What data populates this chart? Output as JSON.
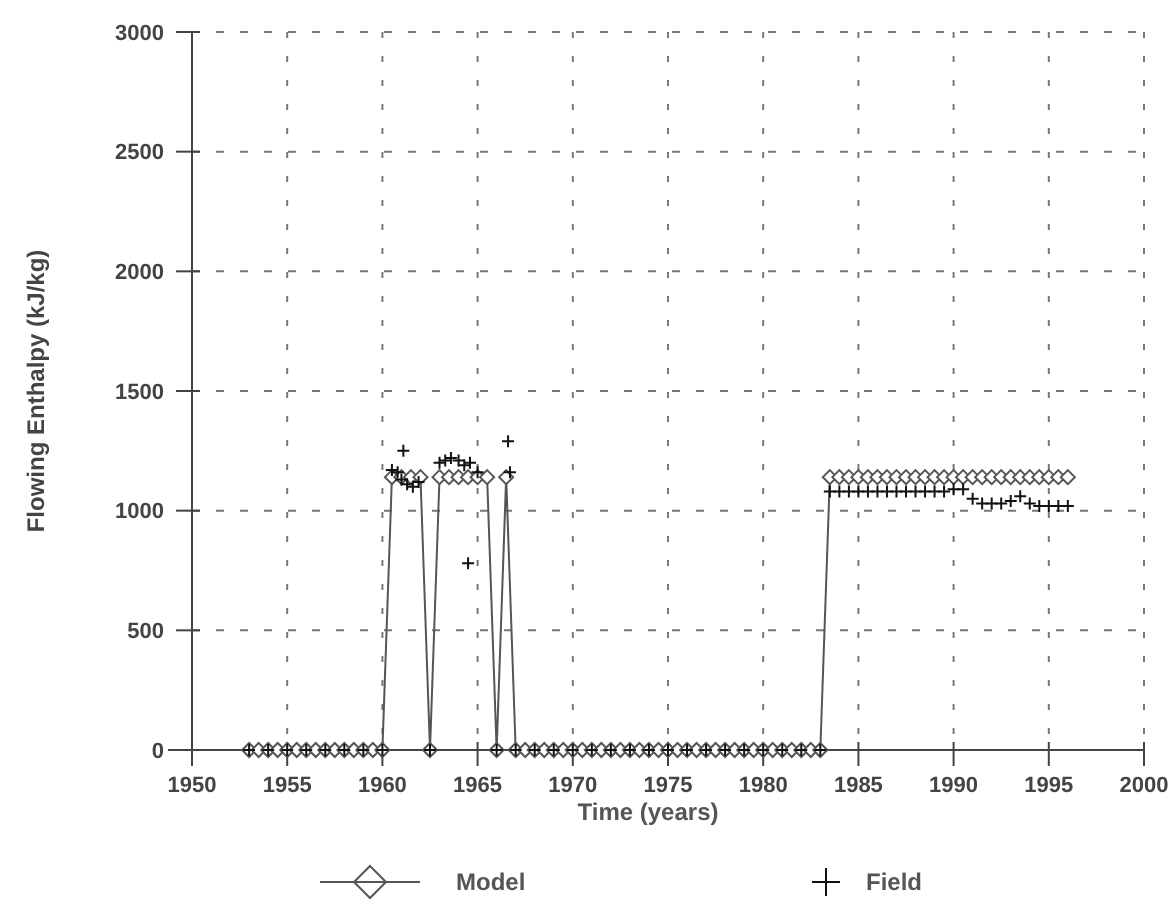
{
  "chart_data": {
    "type": "line",
    "xlabel": "Time (years)",
    "ylabel": "Flowing Enthalpy (kJ/kg)",
    "xlim": [
      1950,
      2000
    ],
    "xticks": [
      1950,
      1955,
      1960,
      1965,
      1970,
      1975,
      1980,
      1985,
      1990,
      1995,
      2000
    ],
    "ylim": [
      0,
      3000
    ],
    "yticks": [
      0,
      500,
      1000,
      1500,
      2000,
      2500,
      3000
    ],
    "grid": true,
    "legend": "bottom",
    "series": [
      {
        "name": "Model",
        "marker": "diamond",
        "color": "#555555",
        "x": [
          1953,
          1953.5,
          1954,
          1954.5,
          1955,
          1955.5,
          1956,
          1956.5,
          1957,
          1957.5,
          1958,
          1958.5,
          1959,
          1959.5,
          1960,
          1960.5,
          1961,
          1961.5,
          1962,
          1962.5,
          1963,
          1963.5,
          1964,
          1964.5,
          1965,
          1965.5,
          1966,
          1966.5,
          1967,
          1967.5,
          1968,
          1968.5,
          1969,
          1969.5,
          1970,
          1970.5,
          1971,
          1971.5,
          1972,
          1972.5,
          1973,
          1973.5,
          1974,
          1974.5,
          1975,
          1975.5,
          1976,
          1976.5,
          1977,
          1977.5,
          1978,
          1978.5,
          1979,
          1979.5,
          1980,
          1980.5,
          1981,
          1981.5,
          1982,
          1982.5,
          1983,
          1983.5,
          1984,
          1984.5,
          1985,
          1985.5,
          1986,
          1986.5,
          1987,
          1987.5,
          1988,
          1988.5,
          1989,
          1989.5,
          1990,
          1990.5,
          1991,
          1991.5,
          1992,
          1992.5,
          1993,
          1993.5,
          1994,
          1994.5,
          1995,
          1995.5,
          1996
        ],
        "values": [
          0,
          0,
          0,
          0,
          0,
          0,
          0,
          0,
          0,
          0,
          0,
          0,
          0,
          0,
          0,
          1140,
          1140,
          1140,
          1140,
          0,
          1140,
          1140,
          1140,
          1140,
          1140,
          1140,
          0,
          1140,
          0,
          0,
          0,
          0,
          0,
          0,
          0,
          0,
          0,
          0,
          0,
          0,
          0,
          0,
          0,
          0,
          0,
          0,
          0,
          0,
          0,
          0,
          0,
          0,
          0,
          0,
          0,
          0,
          0,
          0,
          0,
          0,
          0,
          1140,
          1140,
          1140,
          1140,
          1140,
          1140,
          1140,
          1140,
          1140,
          1140,
          1140,
          1140,
          1140,
          1140,
          1140,
          1140,
          1140,
          1140,
          1140,
          1140,
          1140,
          1140,
          1140,
          1140,
          1140,
          1140
        ]
      },
      {
        "name": "Field",
        "type": "scatter",
        "marker": "cross",
        "color": "#111111",
        "x": [
          1953,
          1954,
          1955,
          1956,
          1957,
          1958,
          1959,
          1960,
          1960.5,
          1960.8,
          1961,
          1961.1,
          1961.3,
          1961.6,
          1961.9,
          1962.5,
          1963,
          1963.3,
          1963.6,
          1964,
          1964.3,
          1964.5,
          1964.6,
          1965,
          1966,
          1966.6,
          1966.7,
          1967,
          1968,
          1969,
          1970,
          1971,
          1972,
          1973,
          1974,
          1975,
          1976,
          1977,
          1978,
          1979,
          1980,
          1981,
          1982,
          1983,
          1983.5,
          1984,
          1984.5,
          1985,
          1985.5,
          1986,
          1986.5,
          1987,
          1987.5,
          1988,
          1988.5,
          1989,
          1989.5,
          1990,
          1990.5,
          1991,
          1991.5,
          1992,
          1992.5,
          1993,
          1993.5,
          1994,
          1994.5,
          1995,
          1995.5,
          1996
        ],
        "values": [
          0,
          0,
          0,
          0,
          0,
          0,
          0,
          0,
          1170,
          1160,
          1130,
          1250,
          1110,
          1100,
          1120,
          0,
          1200,
          1210,
          1220,
          1210,
          1190,
          780,
          1200,
          1160,
          0,
          1290,
          1160,
          0,
          0,
          0,
          0,
          0,
          0,
          0,
          0,
          0,
          0,
          0,
          0,
          0,
          0,
          0,
          0,
          0,
          1080,
          1080,
          1080,
          1080,
          1080,
          1080,
          1080,
          1080,
          1080,
          1080,
          1080,
          1080,
          1080,
          1090,
          1090,
          1050,
          1030,
          1030,
          1030,
          1040,
          1060,
          1030,
          1020,
          1020,
          1020,
          1020
        ]
      }
    ]
  }
}
